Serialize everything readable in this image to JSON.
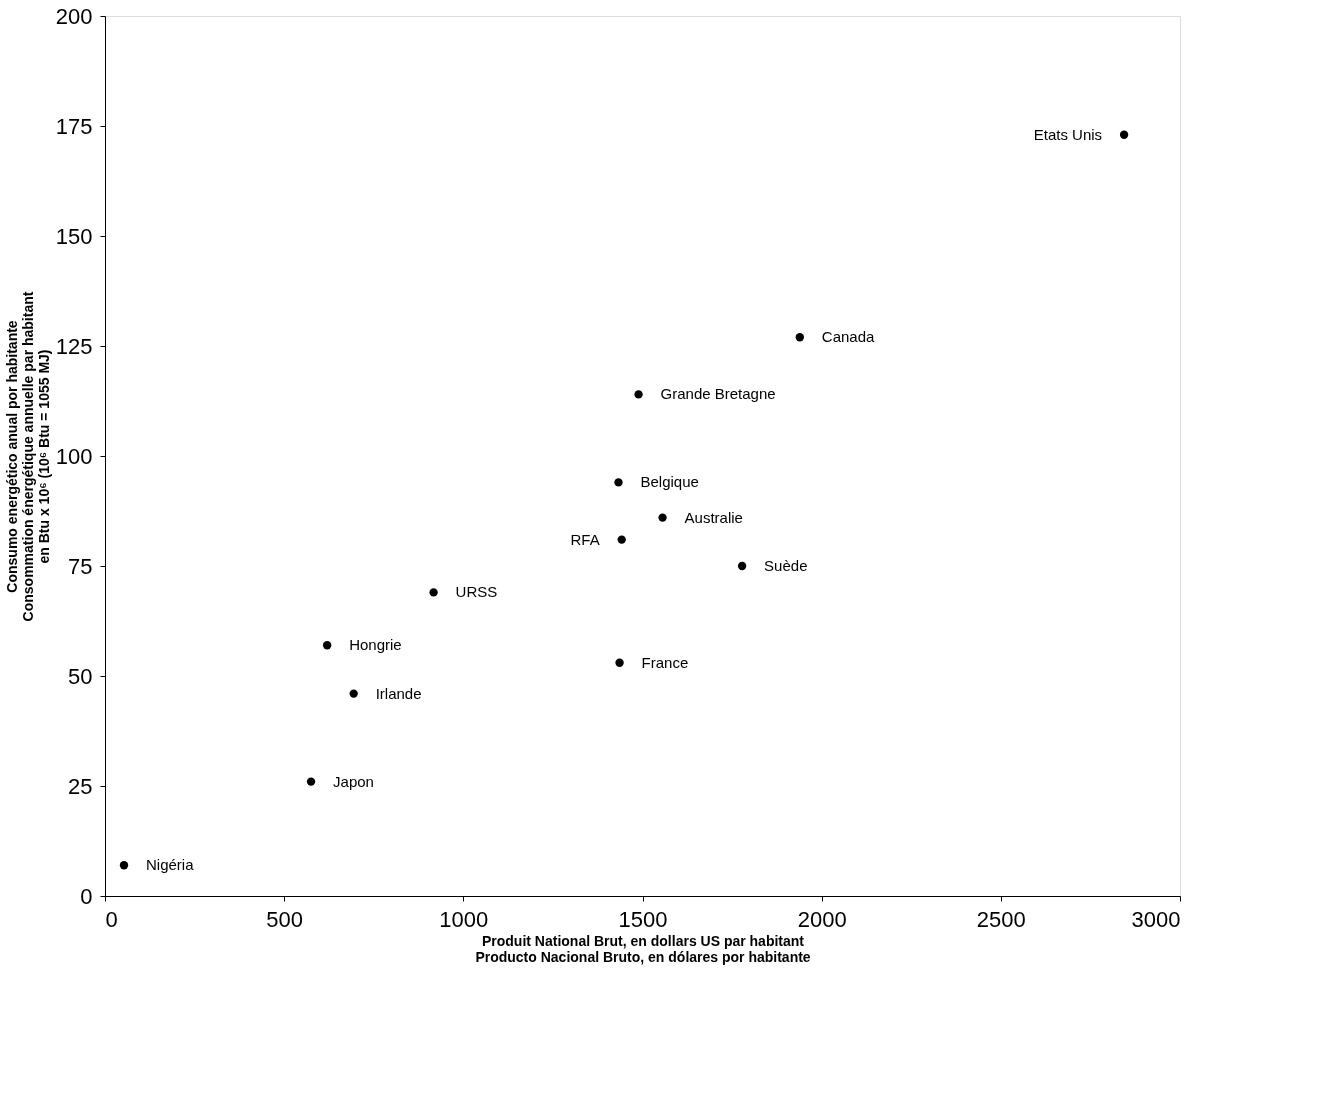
{
  "chart_data": {
    "type": "scatter",
    "xlabel": "Produit National Brut, en dollars US par habitant\nProducto Nacional Bruto, en dólares por habitante",
    "ylabel": "Consumo energético anual por habitante\nConsommation énergétique annuelle par habitant\nen Btu x 10⁶ (10⁶ Btu = 1055 MJ)",
    "x": [
      53,
      575,
      694,
      620,
      917,
      1436,
      1442,
      1433,
      1556,
      1778,
      1489,
      1939,
      2844
    ],
    "series": [
      {
        "color": "#000000",
        "values": [
          7,
          26,
          46,
          57,
          69,
          53,
          81,
          94,
          86,
          75,
          114,
          127,
          173
        ]
      }
    ],
    "annotations": [
      {
        "text": "Nigéria",
        "x": 53,
        "y": 7
      },
      {
        "text": "Japon",
        "x": 575,
        "y": 26
      },
      {
        "text": "Irlande",
        "x": 694,
        "y": 46
      },
      {
        "text": "Hongrie",
        "x": 620,
        "y": 57
      },
      {
        "text": "URSS",
        "x": 917,
        "y": 69
      },
      {
        "text": "France",
        "x": 1436,
        "y": 53
      },
      {
        "text": "RFA",
        "x": 1442,
        "y": 81
      },
      {
        "text": "Belgique",
        "x": 1433,
        "y": 94
      },
      {
        "text": "Australie",
        "x": 1556,
        "y": 86
      },
      {
        "text": "Suède",
        "x": 1778,
        "y": 75
      },
      {
        "text": "Grande Bretagne",
        "x": 1489,
        "y": 114
      },
      {
        "text": "Canada",
        "x": 1939,
        "y": 127
      },
      {
        "text": "Etats Unis",
        "x": 2844,
        "y": 173
      }
    ],
    "xlim": [
      0,
      3000
    ],
    "xticks": [
      0,
      500,
      1000,
      1500,
      2000,
      2500,
      3000
    ],
    "ylim": [
      0,
      200
    ],
    "yticks": [
      0,
      25,
      50,
      75,
      100,
      125,
      150,
      175,
      200
    ],
    "grid": false,
    "marker": "circle"
  }
}
